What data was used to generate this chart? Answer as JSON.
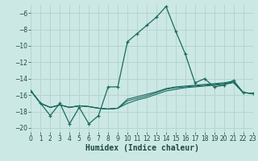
{
  "xlabel": "Humidex (Indice chaleur)",
  "bg_color": "#cce8e5",
  "grid_color": "#b8d4d0",
  "line_color": "#1a6b5e",
  "xlim": [
    0,
    23
  ],
  "ylim": [
    -20.5,
    -5.0
  ],
  "yticks": [
    -20,
    -18,
    -16,
    -14,
    -12,
    -10,
    -8,
    -6
  ],
  "xticks": [
    0,
    1,
    2,
    3,
    4,
    5,
    6,
    7,
    8,
    9,
    10,
    11,
    12,
    13,
    14,
    15,
    16,
    17,
    18,
    19,
    20,
    21,
    22,
    23
  ],
  "main_x": [
    0,
    1,
    2,
    3,
    4,
    5,
    6,
    7,
    8,
    9,
    10,
    11,
    12,
    13,
    14,
    15,
    16,
    17,
    18,
    19,
    20,
    21,
    22,
    23
  ],
  "main_y": [
    -15.5,
    -17.0,
    -18.5,
    -17.0,
    -19.5,
    -17.5,
    -19.5,
    -18.5,
    -15.0,
    -15.0,
    -9.5,
    -8.5,
    -7.5,
    -6.5,
    -5.2,
    -8.2,
    -11.0,
    -14.5,
    -14.0,
    -15.0,
    -14.8,
    -14.2,
    -15.7,
    -15.8
  ],
  "trend1_x": [
    0,
    1,
    2,
    3,
    4,
    5,
    6,
    7,
    8,
    9,
    10,
    11,
    12,
    13,
    14,
    15,
    16,
    17,
    18,
    19,
    20,
    21,
    22,
    23
  ],
  "trend1_y": [
    -15.5,
    -17.0,
    -17.5,
    -17.2,
    -17.5,
    -17.3,
    -17.4,
    -17.6,
    -17.7,
    -17.6,
    -17.0,
    -16.6,
    -16.3,
    -15.9,
    -15.5,
    -15.3,
    -15.1,
    -15.0,
    -14.9,
    -14.8,
    -14.7,
    -14.5,
    -15.7,
    -15.8
  ],
  "trend2_x": [
    0,
    1,
    2,
    3,
    4,
    5,
    6,
    7,
    8,
    9,
    10,
    11,
    12,
    13,
    14,
    15,
    16,
    17,
    18,
    19,
    20,
    21,
    22,
    23
  ],
  "trend2_y": [
    -15.5,
    -17.0,
    -17.5,
    -17.2,
    -17.5,
    -17.3,
    -17.4,
    -17.6,
    -17.7,
    -17.6,
    -16.7,
    -16.4,
    -16.1,
    -15.7,
    -15.3,
    -15.1,
    -15.0,
    -14.9,
    -14.8,
    -14.7,
    -14.6,
    -14.4,
    -15.7,
    -15.8
  ],
  "trend3_x": [
    0,
    1,
    2,
    3,
    4,
    5,
    6,
    7,
    8,
    9,
    10,
    11,
    12,
    13,
    14,
    15,
    16,
    17,
    18,
    19,
    20,
    21,
    22,
    23
  ],
  "trend3_y": [
    -15.5,
    -17.0,
    -17.5,
    -17.2,
    -17.5,
    -17.3,
    -17.4,
    -17.6,
    -17.7,
    -17.6,
    -16.5,
    -16.2,
    -15.9,
    -15.6,
    -15.2,
    -15.0,
    -14.9,
    -14.8,
    -14.7,
    -14.6,
    -14.5,
    -14.3,
    -15.7,
    -15.8
  ]
}
